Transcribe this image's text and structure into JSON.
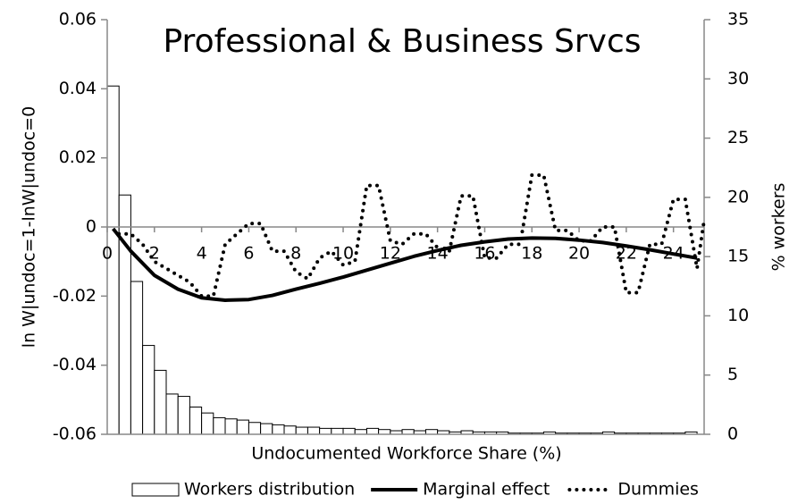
{
  "chart_data": {
    "type": "combo",
    "title": "Professional & Business Srvcs",
    "x_label": "Undocumented Workforce Share (%)",
    "y_label": "ln W|undoc=1-lnW|undoc=0",
    "y2_label": "% workers",
    "xlim": [
      0,
      25.3
    ],
    "xticks": [
      0,
      2,
      4,
      6,
      8,
      10,
      12,
      14,
      16,
      18,
      20,
      22,
      24
    ],
    "ylim": [
      -0.06,
      0.06
    ],
    "yticks": [
      -0.06,
      -0.04,
      -0.02,
      0,
      0.02,
      0.04,
      0.06
    ],
    "y2lim": [
      0,
      35
    ],
    "y2ticks": [
      0,
      5,
      10,
      15,
      20,
      25,
      30,
      35
    ],
    "grid": false,
    "legend": "bottom",
    "series": [
      {
        "name": "Workers distribution",
        "type": "histogram",
        "axis": "y2",
        "color": "#ffffff",
        "edge_color": "#000000",
        "bins": [
          0,
          0.5,
          1,
          1.5,
          2,
          2.5,
          3,
          3.5,
          4,
          4.5,
          5,
          5.5,
          6,
          6.5,
          7,
          7.5,
          8,
          8.5,
          9,
          9.5,
          10,
          10.5,
          11,
          11.5,
          12,
          12.5,
          13,
          13.5,
          14,
          14.5,
          15,
          15.5,
          16,
          16.5,
          17,
          17.5,
          18,
          18.5,
          19,
          19.5,
          20,
          20.5,
          21,
          21.5,
          22,
          22.5,
          23,
          23.5,
          24,
          24.5,
          25
        ],
        "values": [
          29.4,
          20.2,
          12.9,
          7.5,
          5.4,
          3.4,
          3.2,
          2.3,
          1.8,
          1.4,
          1.3,
          1.2,
          1.0,
          0.9,
          0.8,
          0.7,
          0.6,
          0.6,
          0.5,
          0.5,
          0.5,
          0.4,
          0.5,
          0.4,
          0.3,
          0.4,
          0.3,
          0.4,
          0.3,
          0.2,
          0.3,
          0.2,
          0.2,
          0.2,
          0.1,
          0.1,
          0.1,
          0.2,
          0.1,
          0.1,
          0.1,
          0.1,
          0.2,
          0.1,
          0.1,
          0.1,
          0.1,
          0.1,
          0.1,
          0.2
        ]
      },
      {
        "name": "Marginal effect",
        "type": "line",
        "style": "solid",
        "color": "#000000",
        "x": [
          0.25,
          1,
          2,
          3,
          4,
          5,
          6,
          7,
          8,
          9,
          10,
          11,
          12,
          13,
          14,
          15,
          16,
          17,
          18,
          19,
          20,
          21,
          22,
          23,
          24,
          25
        ],
        "values": [
          -0.0005,
          -0.007,
          -0.014,
          -0.018,
          -0.0205,
          -0.0212,
          -0.021,
          -0.0198,
          -0.018,
          -0.0163,
          -0.0145,
          -0.0125,
          -0.0105,
          -0.0085,
          -0.0068,
          -0.0053,
          -0.0043,
          -0.0035,
          -0.0032,
          -0.0033,
          -0.0038,
          -0.0045,
          -0.0055,
          -0.0066,
          -0.0078,
          -0.009
        ]
      },
      {
        "name": "Dummies",
        "type": "line",
        "style": "dotted",
        "color": "#000000",
        "x": [
          0.5,
          1,
          1.5,
          2,
          2.5,
          3,
          3.5,
          4,
          4.5,
          5,
          5.5,
          6,
          6.5,
          7,
          7.5,
          8,
          8.5,
          9,
          9.5,
          10,
          10.5,
          11,
          11.5,
          12,
          12.5,
          13,
          13.5,
          14,
          14.5,
          15,
          15.5,
          16,
          16.5,
          17,
          17.5,
          18,
          18.5,
          19,
          19.5,
          20,
          20.5,
          21,
          21.5,
          22,
          22.5,
          23,
          23.5,
          24,
          24.5,
          25,
          25.3
        ],
        "values": [
          -0.002,
          -0.002,
          -0.005,
          -0.01,
          -0.012,
          -0.014,
          -0.016,
          -0.02,
          -0.02,
          -0.005,
          -0.002,
          0.001,
          0.001,
          -0.007,
          -0.007,
          -0.013,
          -0.015,
          -0.009,
          -0.007,
          -0.011,
          -0.01,
          0.012,
          0.012,
          -0.004,
          -0.005,
          -0.002,
          -0.002,
          -0.006,
          -0.007,
          0.009,
          0.009,
          -0.009,
          -0.009,
          -0.005,
          -0.005,
          0.015,
          0.015,
          -0.001,
          -0.001,
          -0.004,
          -0.004,
          0,
          0,
          -0.019,
          -0.019,
          -0.005,
          -0.005,
          0.008,
          0.008,
          -0.012,
          0.002
        ]
      }
    ]
  }
}
